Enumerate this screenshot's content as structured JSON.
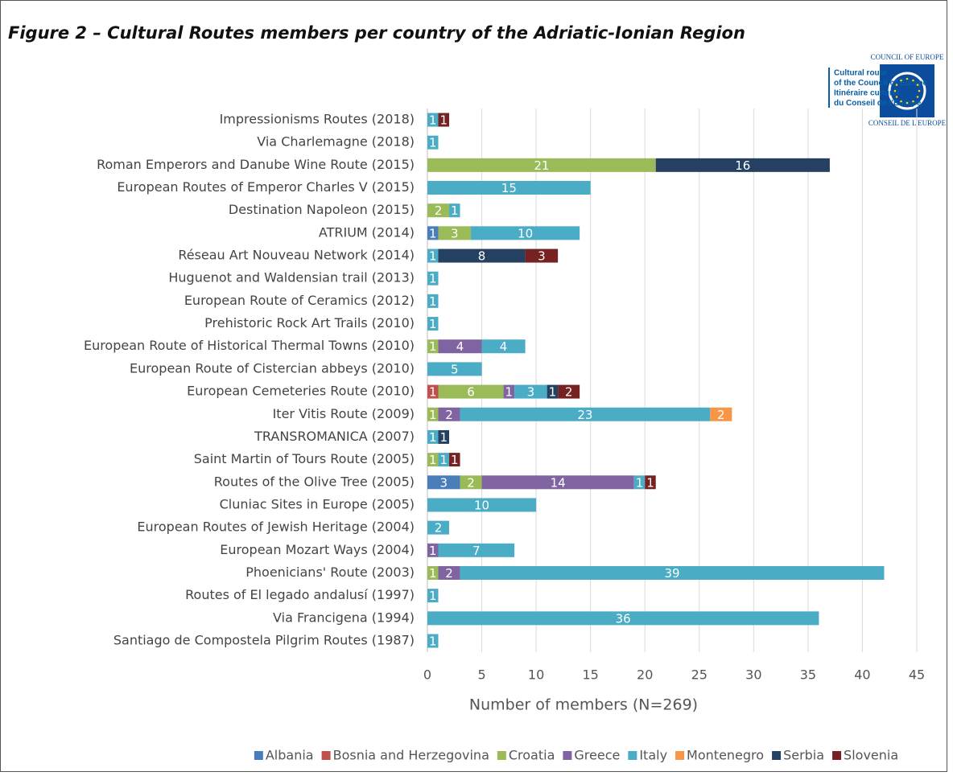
{
  "chart_data": {
    "type": "stacked_barh",
    "title": "Figure 2 – Cultural Routes members per country of the Adriatic-Ionian Region",
    "xlabel": "Number of members (N=269)",
    "categories": [
      "Impressionisms Routes (2018)",
      "Via Charlemagne (2018)",
      "Roman Emperors and Danube Wine Route (2015)",
      "European Routes of Emperor Charles V (2015)",
      "Destination Napoleon (2015)",
      "ATRIUM (2014)",
      "Réseau Art Nouveau Network (2014)",
      "Huguenot and Waldensian trail (2013)",
      "European Route of Ceramics (2012)",
      "Prehistoric Rock Art Trails (2010)",
      "European Route of Historical Thermal Towns (2010)",
      "European Route of Cistercian abbeys (2010)",
      "European Cemeteries Route (2010)",
      "Iter Vitis Route (2009)",
      "TRANSROMANICA (2007)",
      "Saint Martin of Tours Route (2005)",
      "Routes of the Olive Tree (2005)",
      "Cluniac Sites in Europe (2005)",
      "European Routes of Jewish Heritage (2004)",
      "European Mozart Ways (2004)",
      "Phoenicians' Route (2003)",
      "Routes of El legado andalusí (1997)",
      "Via Francigena (1994)",
      "Santiago de Compostela Pilgrim Routes (1987)"
    ],
    "series": [
      {
        "name": "Albania",
        "color": "#4a7ebb",
        "values": [
          null,
          null,
          null,
          null,
          null,
          1,
          null,
          null,
          null,
          null,
          null,
          null,
          null,
          null,
          null,
          null,
          3,
          null,
          null,
          null,
          null,
          null,
          null,
          null
        ]
      },
      {
        "name": "Bosnia and Herzegovina",
        "color": "#c0504d",
        "values": [
          null,
          null,
          null,
          null,
          null,
          null,
          null,
          null,
          null,
          null,
          null,
          null,
          1,
          null,
          null,
          null,
          null,
          null,
          null,
          null,
          null,
          null,
          null,
          null
        ]
      },
      {
        "name": "Croatia",
        "color": "#9bbb59",
        "values": [
          null,
          null,
          21,
          null,
          2,
          3,
          null,
          null,
          null,
          null,
          1,
          null,
          6,
          1,
          null,
          1,
          2,
          null,
          null,
          null,
          1,
          null,
          null,
          null
        ]
      },
      {
        "name": "Greece",
        "color": "#8064a2",
        "values": [
          null,
          null,
          null,
          null,
          null,
          null,
          null,
          null,
          null,
          null,
          4,
          null,
          1,
          2,
          null,
          null,
          14,
          null,
          null,
          1,
          2,
          null,
          null,
          null
        ]
      },
      {
        "name": "Italy",
        "color": "#4bacc6",
        "values": [
          1,
          1,
          null,
          15,
          1,
          10,
          1,
          1,
          1,
          1,
          4,
          5,
          3,
          23,
          1,
          1,
          1,
          10,
          2,
          7,
          39,
          1,
          36,
          1
        ]
      },
      {
        "name": "Montenegro",
        "color": "#f79646",
        "values": [
          null,
          null,
          null,
          null,
          null,
          null,
          null,
          null,
          null,
          null,
          null,
          null,
          null,
          2,
          null,
          null,
          null,
          null,
          null,
          null,
          null,
          null,
          null,
          null
        ]
      },
      {
        "name": "Serbia",
        "color": "#254061",
        "values": [
          null,
          null,
          16,
          null,
          null,
          null,
          8,
          null,
          null,
          null,
          null,
          null,
          1,
          null,
          1,
          null,
          null,
          null,
          null,
          null,
          null,
          null,
          null,
          null
        ]
      },
      {
        "name": "Slovenia",
        "color": "#772222",
        "values": [
          1,
          null,
          null,
          null,
          null,
          null,
          3,
          null,
          null,
          null,
          null,
          null,
          2,
          null,
          null,
          1,
          1,
          null,
          null,
          null,
          null,
          null,
          null,
          null
        ]
      }
    ],
    "xlim": [
      0,
      45
    ],
    "xticks": [
      0,
      5,
      10,
      15,
      20,
      25,
      30,
      35,
      40,
      45
    ],
    "grid": true,
    "legend": "bottom"
  },
  "logo": {
    "top": "COUNCIL OF EUROPE",
    "bottom": "CONSEIL DE L'EUROPE",
    "lines": [
      "Cultural route",
      "of the Council of Europe",
      "Itinéraire culturel",
      "du Conseil de l’Europe"
    ]
  }
}
